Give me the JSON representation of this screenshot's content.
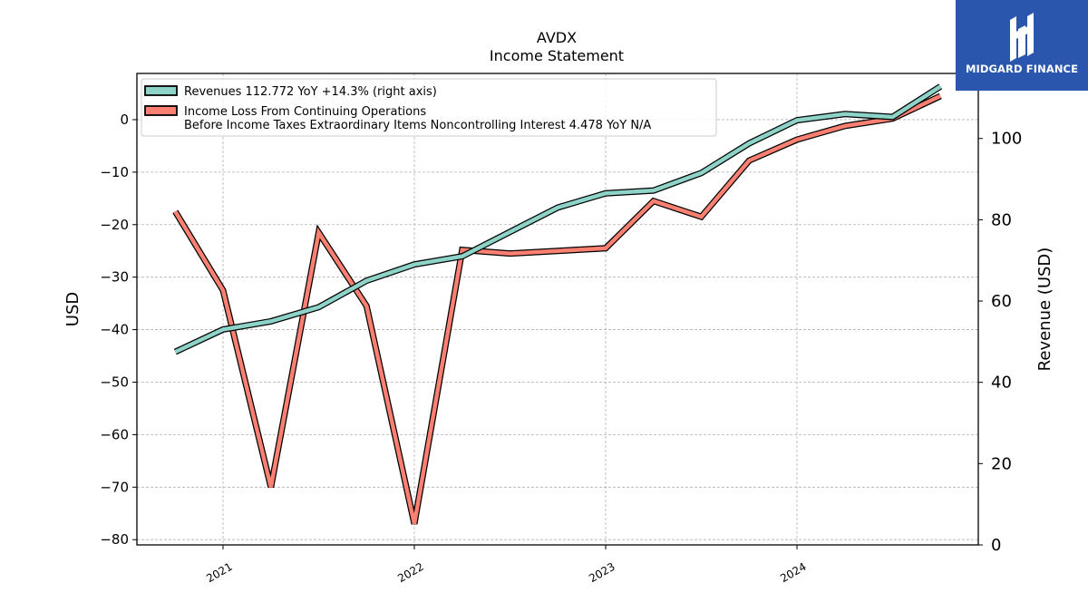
{
  "title": "AVDX",
  "subtitle": "Income Statement",
  "brand": {
    "name": "MIDGARD FINANCE",
    "color": "#2a57ad"
  },
  "chart_data": {
    "type": "line",
    "x": [
      "2020-10",
      "2021-01",
      "2021-04",
      "2021-07",
      "2021-10",
      "2022-01",
      "2022-04",
      "2022-07",
      "2022-10",
      "2023-01",
      "2023-04",
      "2023-07",
      "2023-10",
      "2024-01",
      "2024-04",
      "2024-07",
      "2024-10"
    ],
    "x_ticks": [
      "2021",
      "2022",
      "2023",
      "2024"
    ],
    "left_axis": {
      "label": "USD",
      "ylim": [
        -81,
        8.8
      ],
      "ticks": [
        0,
        -10,
        -20,
        -30,
        -40,
        -50,
        -60,
        -70,
        -80
      ]
    },
    "right_axis": {
      "label": "Revenue (USD)",
      "ylim": [
        0,
        116
      ],
      "ticks": [
        0,
        20,
        40,
        60,
        80,
        100
      ]
    },
    "grid": true,
    "legend_position": "top-left",
    "series": [
      {
        "name": "Revenues  112.772 YoY +14.3% (right axis)",
        "axis": "right",
        "color": "#8dd3c7",
        "values": [
          47.5,
          53.0,
          55.0,
          58.5,
          65.0,
          69.0,
          71.0,
          77.0,
          83.0,
          86.5,
          87.2,
          91.5,
          98.8,
          104.5,
          106.0,
          105.3,
          112.8
        ]
      },
      {
        "name": "Income Loss From Continuing Operations\nBefore Income Taxes Extraordinary Items Noncontrolling Interest  4.478 YoY N/A",
        "axis": "left",
        "color": "#fb8072",
        "values": [
          -17.5,
          -32.5,
          -70.0,
          -21.5,
          -35.5,
          -77.0,
          -24.8,
          -25.5,
          -25.0,
          -24.5,
          -15.5,
          -18.5,
          -7.8,
          -3.8,
          -1.2,
          0.2,
          4.5
        ]
      }
    ]
  }
}
